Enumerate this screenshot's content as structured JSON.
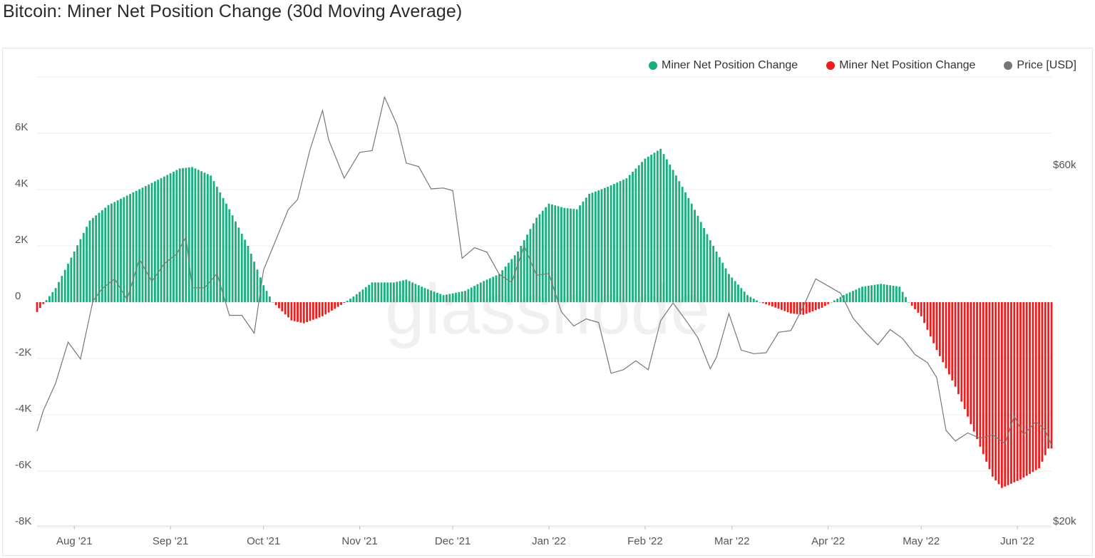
{
  "title": "Bitcoin: Miner Net Position Change (30d Moving Average)",
  "watermark": "glassnode",
  "legend": [
    {
      "label": "Miner Net Position Change",
      "color": "#17b07a"
    },
    {
      "label": "Miner Net Position Change",
      "color": "#ee1c1c"
    },
    {
      "label": "Price [USD]",
      "color": "#777777"
    }
  ],
  "chart_data": {
    "type": "bar",
    "title": "Bitcoin: Miner Net Position Change (30d Moving Average)",
    "x_ticks": [
      "Aug '21",
      "Sep '21",
      "Oct '21",
      "Nov '21",
      "Dec '21",
      "Jan '22",
      "Feb '22",
      "Mar '22",
      "Apr '22",
      "May '22",
      "Jun '22"
    ],
    "y_left": {
      "ticks": [
        "6K",
        "4K",
        "2K",
        "0",
        "-2K",
        "-4K",
        "-6K",
        "-8K"
      ],
      "min": -8000,
      "max": 6000
    },
    "y_right": {
      "ticks": [
        "$60k",
        "$20k"
      ],
      "min": 20000,
      "max": 70000
    },
    "x_range": [
      "2021-07-20",
      "2022-06-12"
    ],
    "net_position_points": [
      [
        "2021-07-20",
        -350
      ],
      [
        "2021-07-26",
        500
      ],
      [
        "2021-08-01",
        1800
      ],
      [
        "2021-08-06",
        2900
      ],
      [
        "2021-08-12",
        3450
      ],
      [
        "2021-08-20",
        3900
      ],
      [
        "2021-08-28",
        4350
      ],
      [
        "2021-09-04",
        4750
      ],
      [
        "2021-09-08",
        4800
      ],
      [
        "2021-09-14",
        4500
      ],
      [
        "2021-09-20",
        3300
      ],
      [
        "2021-09-26",
        2000
      ],
      [
        "2021-10-01",
        600
      ],
      [
        "2021-10-04",
        0
      ],
      [
        "2021-10-10",
        -650
      ],
      [
        "2021-10-14",
        -750
      ],
      [
        "2021-10-20",
        -500
      ],
      [
        "2021-10-26",
        -100
      ],
      [
        "2021-10-30",
        200
      ],
      [
        "2021-11-05",
        700
      ],
      [
        "2021-11-12",
        700
      ],
      [
        "2021-11-16",
        800
      ],
      [
        "2021-11-22",
        500
      ],
      [
        "2021-11-28",
        250
      ],
      [
        "2021-12-05",
        400
      ],
      [
        "2021-12-10",
        700
      ],
      [
        "2021-12-16",
        1000
      ],
      [
        "2021-12-22",
        1800
      ],
      [
        "2021-12-28",
        3000
      ],
      [
        "2022-01-01",
        3500
      ],
      [
        "2022-01-06",
        3350
      ],
      [
        "2022-01-10",
        3300
      ],
      [
        "2022-01-14",
        3850
      ],
      [
        "2022-01-20",
        4100
      ],
      [
        "2022-01-26",
        4400
      ],
      [
        "2022-02-01",
        5100
      ],
      [
        "2022-02-06",
        5450
      ],
      [
        "2022-02-10",
        4700
      ],
      [
        "2022-02-16",
        3500
      ],
      [
        "2022-02-22",
        2200
      ],
      [
        "2022-02-28",
        1000
      ],
      [
        "2022-03-06",
        250
      ],
      [
        "2022-03-10",
        0
      ],
      [
        "2022-03-14",
        -150
      ],
      [
        "2022-03-20",
        -400
      ],
      [
        "2022-03-24",
        -450
      ],
      [
        "2022-03-30",
        -200
      ],
      [
        "2022-04-02",
        0
      ],
      [
        "2022-04-06",
        250
      ],
      [
        "2022-04-12",
        550
      ],
      [
        "2022-04-18",
        650
      ],
      [
        "2022-04-24",
        550
      ],
      [
        "2022-04-27",
        0
      ],
      [
        "2022-05-01",
        -500
      ],
      [
        "2022-05-06",
        -1700
      ],
      [
        "2022-05-12",
        -3000
      ],
      [
        "2022-05-18",
        -4600
      ],
      [
        "2022-05-24",
        -6200
      ],
      [
        "2022-05-27",
        -6600
      ],
      [
        "2022-06-02",
        -6300
      ],
      [
        "2022-06-08",
        -5900
      ],
      [
        "2022-06-11",
        -5200
      ]
    ],
    "price_points": [
      [
        "2021-07-20",
        30000
      ],
      [
        "2021-07-22",
        32300
      ],
      [
        "2021-07-26",
        35400
      ],
      [
        "2021-07-30",
        40000
      ],
      [
        "2021-08-03",
        38100
      ],
      [
        "2021-08-07",
        44600
      ],
      [
        "2021-08-10",
        46000
      ],
      [
        "2021-08-14",
        47100
      ],
      [
        "2021-08-18",
        44800
      ],
      [
        "2021-08-22",
        49300
      ],
      [
        "2021-08-26",
        46800
      ],
      [
        "2021-08-30",
        48800
      ],
      [
        "2021-09-03",
        49900
      ],
      [
        "2021-09-06",
        51800
      ],
      [
        "2021-09-08",
        46100
      ],
      [
        "2021-09-12",
        46100
      ],
      [
        "2021-09-16",
        47700
      ],
      [
        "2021-09-20",
        43000
      ],
      [
        "2021-09-24",
        43000
      ],
      [
        "2021-09-28",
        41000
      ],
      [
        "2021-10-01",
        48100
      ],
      [
        "2021-10-05",
        51500
      ],
      [
        "2021-10-09",
        54900
      ],
      [
        "2021-10-12",
        56000
      ],
      [
        "2021-10-16",
        61600
      ],
      [
        "2021-10-20",
        66000
      ],
      [
        "2021-10-22",
        62700
      ],
      [
        "2021-10-27",
        58400
      ],
      [
        "2021-11-01",
        61300
      ],
      [
        "2021-11-05",
        61500
      ],
      [
        "2021-11-09",
        67500
      ],
      [
        "2021-11-13",
        64400
      ],
      [
        "2021-11-16",
        60100
      ],
      [
        "2021-11-20",
        59700
      ],
      [
        "2021-11-24",
        57200
      ],
      [
        "2021-11-28",
        57300
      ],
      [
        "2021-12-01",
        57000
      ],
      [
        "2021-12-04",
        49400
      ],
      [
        "2021-12-08",
        50600
      ],
      [
        "2021-12-12",
        50100
      ],
      [
        "2021-12-16",
        47600
      ],
      [
        "2021-12-20",
        46700
      ],
      [
        "2021-12-24",
        50800
      ],
      [
        "2021-12-28",
        47500
      ],
      [
        "2022-01-01",
        47700
      ],
      [
        "2022-01-05",
        43400
      ],
      [
        "2022-01-09",
        41800
      ],
      [
        "2022-01-13",
        42600
      ],
      [
        "2022-01-17",
        42200
      ],
      [
        "2022-01-21",
        36500
      ],
      [
        "2022-01-25",
        36900
      ],
      [
        "2022-01-29",
        37900
      ],
      [
        "2022-02-02",
        36900
      ],
      [
        "2022-02-06",
        42400
      ],
      [
        "2022-02-10",
        44400
      ],
      [
        "2022-02-14",
        42500
      ],
      [
        "2022-02-18",
        40500
      ],
      [
        "2022-02-22",
        37000
      ],
      [
        "2022-02-24",
        38300
      ],
      [
        "2022-02-28",
        43200
      ],
      [
        "2022-03-04",
        39100
      ],
      [
        "2022-03-08",
        38700
      ],
      [
        "2022-03-12",
        38800
      ],
      [
        "2022-03-16",
        41100
      ],
      [
        "2022-03-20",
        41300
      ],
      [
        "2022-03-24",
        44000
      ],
      [
        "2022-03-28",
        47100
      ],
      [
        "2022-04-01",
        46300
      ],
      [
        "2022-04-05",
        45500
      ],
      [
        "2022-04-09",
        42700
      ],
      [
        "2022-04-13",
        41100
      ],
      [
        "2022-04-17",
        39700
      ],
      [
        "2022-04-21",
        41400
      ],
      [
        "2022-04-25",
        40400
      ],
      [
        "2022-04-29",
        38600
      ],
      [
        "2022-05-03",
        37700
      ],
      [
        "2022-05-06",
        36000
      ],
      [
        "2022-05-09",
        30100
      ],
      [
        "2022-05-12",
        28900
      ],
      [
        "2022-05-16",
        29800
      ],
      [
        "2022-05-20",
        29200
      ],
      [
        "2022-05-24",
        29600
      ],
      [
        "2022-05-28",
        28600
      ],
      [
        "2022-05-31",
        31700
      ],
      [
        "2022-06-03",
        29600
      ],
      [
        "2022-06-07",
        31100
      ],
      [
        "2022-06-10",
        30100
      ],
      [
        "2022-06-12",
        28400
      ]
    ],
    "colors": {
      "positive": "#17b07a",
      "negative": "#ee1c1c",
      "price": "#777777",
      "grid": "#ececec"
    }
  }
}
